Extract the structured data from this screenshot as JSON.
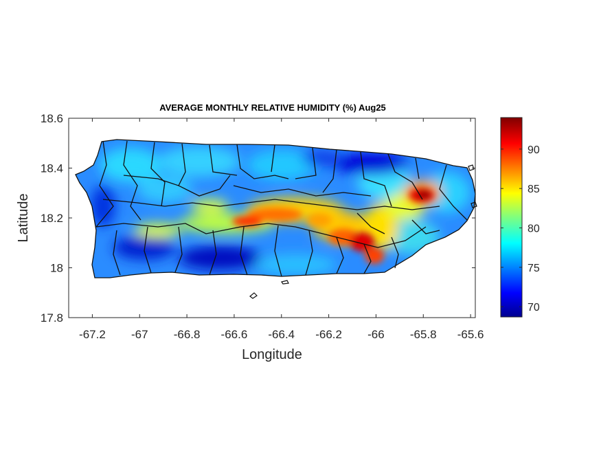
{
  "title": "AVERAGE MONTHLY RELATIVE HUMIDITY (%) Aug25",
  "x_axis": {
    "label": "Longitude",
    "ticks": [
      "-67.2",
      "-67",
      "-66.8",
      "-66.6",
      "-66.4",
      "-66.2",
      "-66",
      "-65.8",
      "-65.6"
    ]
  },
  "y_axis": {
    "label": "Latitude",
    "ticks": [
      "18.6",
      "18.4",
      "18.2",
      "18",
      "17.8"
    ]
  },
  "colorbar": {
    "ticks": [
      "90",
      "85",
      "80",
      "75",
      "70"
    ],
    "colormap": "jet"
  },
  "chart_data": {
    "type": "heatmap",
    "title": "AVERAGE MONTHLY RELATIVE HUMIDITY (%) Aug25",
    "xlabel": "Longitude",
    "ylabel": "Latitude",
    "xlim": [
      -67.3,
      -65.58
    ],
    "ylim": [
      17.8,
      18.6
    ],
    "x_ticks": [
      -67.2,
      -67,
      -66.8,
      -66.6,
      -66.4,
      -66.2,
      -66,
      -65.8,
      -65.6
    ],
    "y_ticks": [
      17.8,
      18,
      18.2,
      18.4,
      18.6
    ],
    "colorbar_range": [
      68.7,
      94.0
    ],
    "colorbar_ticks": [
      70,
      75,
      80,
      85,
      90
    ],
    "grid": false,
    "highlights": [
      {
        "lon": -65.8,
        "lat": 18.28,
        "value": 93
      },
      {
        "lon": -66.06,
        "lat": 18.09,
        "value": 92
      },
      {
        "lon": -66.55,
        "lat": 18.17,
        "value": 90
      },
      {
        "lon": -66.4,
        "lat": 18.19,
        "value": 88
      },
      {
        "lon": -66.05,
        "lat": 18.43,
        "value": 70
      },
      {
        "lon": -66.6,
        "lat": 18.03,
        "value": 71
      },
      {
        "lon": -67.1,
        "lat": 18.15,
        "value": 73
      }
    ]
  }
}
